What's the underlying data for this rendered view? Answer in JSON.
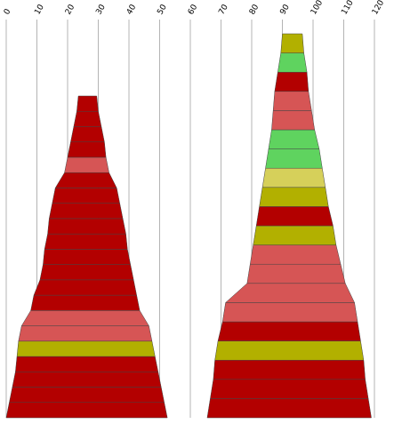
{
  "chart_data": {
    "type": "bar",
    "subtype": "stacked-tapered-columns",
    "title": "",
    "xlabel": "",
    "ylabel": "",
    "x_axis_position": "top",
    "x_ticks": [
      "0",
      "10",
      "20",
      "30",
      "40",
      "50",
      "60",
      "70",
      "80",
      "90",
      "100",
      "110",
      "120"
    ],
    "xlim": [
      0,
      120
    ],
    "grid": true,
    "legend": "none",
    "colors": {
      "red": "#b30000",
      "salmon": "#d65555",
      "olive": "#b2b000",
      "green": "#5fd35f",
      "khaki": "#d6d05a"
    },
    "series": [
      {
        "column": 1,
        "segments_bottom_to_top": [
          {
            "left": 0.0,
            "right": 52.5,
            "color": "red"
          },
          {
            "left": 1.0,
            "right": 51.5,
            "color": "red"
          },
          {
            "left": 2.0,
            "right": 50.5,
            "color": "red"
          },
          {
            "left": 3.0,
            "right": 49.5,
            "color": "red"
          },
          {
            "left": 3.5,
            "right": 48.5,
            "color": "olive"
          },
          {
            "left": 4.0,
            "right": 47.5,
            "color": "salmon"
          },
          {
            "left": 5.0,
            "right": 46.5,
            "color": "salmon"
          },
          {
            "left": 8.0,
            "right": 43.5,
            "color": "red"
          },
          {
            "left": 9.0,
            "right": 42.5,
            "color": "red"
          },
          {
            "left": 11.0,
            "right": 41.5,
            "color": "red"
          },
          {
            "left": 12.0,
            "right": 40.5,
            "color": "red"
          },
          {
            "left": 12.5,
            "right": 39.5,
            "color": "red"
          },
          {
            "left": 13.5,
            "right": 39.0,
            "color": "red"
          },
          {
            "left": 14.0,
            "right": 38.0,
            "color": "red"
          },
          {
            "left": 15.0,
            "right": 37.0,
            "color": "red"
          },
          {
            "left": 16.0,
            "right": 36.0,
            "color": "red"
          },
          {
            "left": 19.0,
            "right": 33.5,
            "color": "salmon"
          },
          {
            "left": 20.0,
            "right": 32.5,
            "color": "red"
          },
          {
            "left": 21.0,
            "right": 32.0,
            "color": "red"
          },
          {
            "left": 22.0,
            "right": 31.0,
            "color": "red"
          },
          {
            "left": 23.0,
            "right": 30.0,
            "color": "red"
          }
        ]
      },
      {
        "column": 2,
        "segments_bottom_to_top": [
          {
            "left": 65.5,
            "right": 119.0,
            "color": "red"
          },
          {
            "left": 66.5,
            "right": 118.0,
            "color": "red"
          },
          {
            "left": 67.5,
            "right": 117.0,
            "color": "red"
          },
          {
            "left": 68.0,
            "right": 116.5,
            "color": "olive"
          },
          {
            "left": 69.0,
            "right": 115.5,
            "color": "red"
          },
          {
            "left": 70.5,
            "right": 114.5,
            "color": "salmon"
          },
          {
            "left": 71.5,
            "right": 113.5,
            "color": "salmon"
          },
          {
            "left": 78.5,
            "right": 110.5,
            "color": "salmon"
          },
          {
            "left": 79.5,
            "right": 109.0,
            "color": "salmon"
          },
          {
            "left": 80.5,
            "right": 107.5,
            "color": "olive"
          },
          {
            "left": 81.5,
            "right": 106.5,
            "color": "red"
          },
          {
            "left": 82.5,
            "right": 105.0,
            "color": "olive"
          },
          {
            "left": 83.5,
            "right": 104.0,
            "color": "khaki"
          },
          {
            "left": 84.5,
            "right": 103.0,
            "color": "green"
          },
          {
            "left": 85.5,
            "right": 102.0,
            "color": "green"
          },
          {
            "left": 86.5,
            "right": 100.5,
            "color": "salmon"
          },
          {
            "left": 87.0,
            "right": 99.5,
            "color": "salmon"
          },
          {
            "left": 87.5,
            "right": 98.5,
            "color": "red"
          },
          {
            "left": 88.5,
            "right": 98.0,
            "color": "green"
          },
          {
            "left": 89.5,
            "right": 97.0,
            "color": "olive"
          }
        ]
      }
    ]
  }
}
